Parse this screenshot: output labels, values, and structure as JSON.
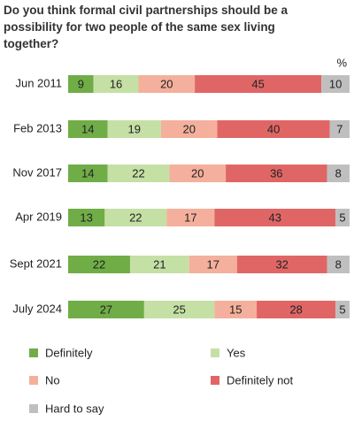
{
  "chart_data": {
    "type": "stacked-bar-horizontal",
    "title": "Do you think formal civil partnerships should be a possibility for two people of the same sex living together?",
    "value_unit_label": "%",
    "categories": [
      "Jun 2011",
      "Feb 2013",
      "Nov 2017",
      "Apr 2019",
      "Sept 2021",
      "July 2024"
    ],
    "series": [
      {
        "name": "Definitely",
        "color": "#70ad47",
        "values": [
          9,
          14,
          14,
          13,
          22,
          27
        ]
      },
      {
        "name": "Yes",
        "color": "#c5e0a5",
        "values": [
          16,
          19,
          22,
          22,
          21,
          25
        ]
      },
      {
        "name": "No",
        "color": "#f4b09c",
        "values": [
          20,
          20,
          20,
          17,
          17,
          15
        ]
      },
      {
        "name": "Definitely not",
        "color": "#e06666",
        "values": [
          45,
          40,
          36,
          43,
          32,
          28
        ]
      },
      {
        "name": "Hard to say",
        "color": "#bfbfbf",
        "values": [
          10,
          7,
          8,
          5,
          8,
          5
        ]
      }
    ]
  }
}
